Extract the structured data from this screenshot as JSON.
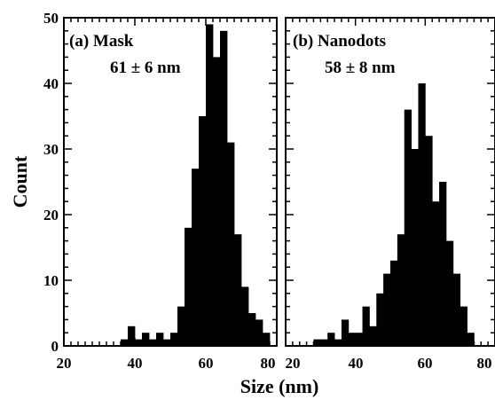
{
  "chart_data": [
    {
      "type": "bar",
      "panel": "(a) Mask",
      "annotation": "61 ± 6 nm",
      "xlim": [
        20,
        80
      ],
      "ylim": [
        0,
        50
      ],
      "bin_width": 2,
      "x": [
        36,
        38,
        40,
        42,
        44,
        46,
        48,
        50,
        52,
        54,
        56,
        58,
        60,
        62,
        64,
        66,
        68,
        70,
        72,
        74,
        76
      ],
      "values": [
        1,
        3,
        1,
        2,
        1,
        2,
        1,
        2,
        6,
        18,
        27,
        35,
        49,
        44,
        48,
        31,
        17,
        9,
        5,
        4,
        2
      ]
    },
    {
      "type": "bar",
      "panel": "(b) Nanodots",
      "annotation": "58 ± 8 nm",
      "xlim": [
        20,
        80
      ],
      "ylim": [
        0,
        50
      ],
      "bin_width": 2,
      "x": [
        28,
        30,
        32,
        34,
        36,
        38,
        40,
        42,
        44,
        46,
        48,
        50,
        52,
        54,
        56,
        58,
        60,
        62,
        64,
        66,
        68,
        70,
        72
      ],
      "values": [
        1,
        1,
        2,
        1,
        4,
        2,
        2,
        6,
        3,
        8,
        11,
        13,
        17,
        36,
        30,
        40,
        32,
        22,
        25,
        16,
        11,
        6,
        2
      ]
    }
  ],
  "axes": {
    "xlabel": "Size (nm)",
    "ylabel": "Count",
    "yticks": [
      "0",
      "10",
      "20",
      "30",
      "40",
      "50"
    ],
    "xticks_a": [
      "20",
      "40",
      "60",
      "80"
    ],
    "xticks_b": [
      "20",
      "40",
      "60",
      "80"
    ]
  }
}
